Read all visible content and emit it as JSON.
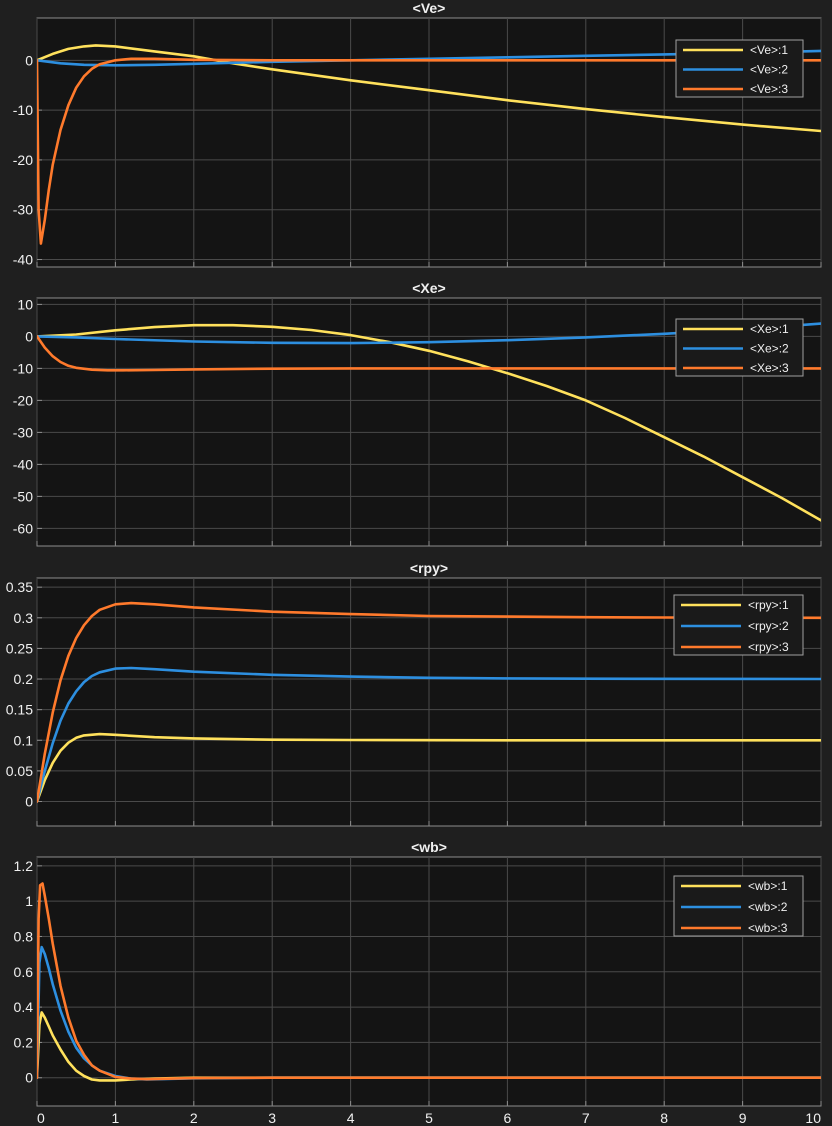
{
  "colors": {
    "background": "#1f1f1f",
    "plot_area": "#141414",
    "grid": "#4a4a4a",
    "axis": "#8c8c8c",
    "text": "#f0f0f0",
    "legend_bg": "#1a1a1a",
    "legend_border": "#a0a0a0",
    "series_1": "#ffe15c",
    "series_2": "#2d8fe0",
    "series_3": "#ff7a2c"
  },
  "chart_data": [
    {
      "type": "line",
      "title": "<Ve>",
      "xlim": [
        0,
        10
      ],
      "ylim": [
        -41.5,
        8.5
      ],
      "yticks": [
        -40,
        -30,
        -20,
        -10,
        0
      ],
      "xticks": [
        0,
        1,
        2,
        3,
        4,
        5,
        6,
        7,
        8,
        9,
        10
      ],
      "show_xticklabels": false,
      "grid": true,
      "legend": "top-right",
      "series": [
        {
          "name": "<Ve>:1",
          "x": [
            0,
            0.2,
            0.4,
            0.6,
            0.75,
            1,
            1.5,
            2,
            2.5,
            3,
            4,
            5,
            6,
            7,
            8,
            9,
            10
          ],
          "y": [
            0,
            1.3,
            2.3,
            2.8,
            3.0,
            2.8,
            1.8,
            0.8,
            -0.6,
            -1.8,
            -4.0,
            -6.0,
            -8.0,
            -9.8,
            -11.4,
            -12.9,
            -14.2
          ]
        },
        {
          "name": "<Ve>:2",
          "x": [
            0,
            0.3,
            0.6,
            1,
            1.5,
            2,
            3,
            4,
            5,
            6,
            7,
            8,
            9,
            10
          ],
          "y": [
            0,
            -0.6,
            -0.9,
            -1.0,
            -0.9,
            -0.7,
            -0.3,
            0,
            0.3,
            0.6,
            0.9,
            1.2,
            1.5,
            1.9
          ]
        },
        {
          "name": "<Ve>:3",
          "x": [
            0,
            0.02,
            0.05,
            0.1,
            0.15,
            0.2,
            0.3,
            0.4,
            0.5,
            0.6,
            0.7,
            0.8,
            1,
            1.2,
            1.5,
            2,
            3,
            10
          ],
          "y": [
            0,
            -30,
            -36.8,
            -32,
            -26,
            -21,
            -14,
            -9,
            -5.5,
            -3.2,
            -1.7,
            -0.8,
            0.0,
            0.3,
            0.3,
            0.1,
            0,
            0
          ]
        }
      ]
    },
    {
      "type": "line",
      "title": "<Xe>",
      "xlim": [
        0,
        10
      ],
      "ylim": [
        -65.5,
        12
      ],
      "yticks": [
        -60,
        -50,
        -40,
        -30,
        -20,
        -10,
        0,
        10
      ],
      "xticks": [
        0,
        1,
        2,
        3,
        4,
        5,
        6,
        7,
        8,
        9,
        10
      ],
      "show_xticklabels": false,
      "grid": true,
      "legend": "top-right",
      "series": [
        {
          "name": "<Xe>:1",
          "x": [
            0,
            0.5,
            1,
            1.5,
            2,
            2.5,
            3,
            3.5,
            4,
            4.5,
            5,
            5.5,
            6,
            6.5,
            7,
            7.5,
            8,
            8.5,
            9,
            9.5,
            10
          ],
          "y": [
            0,
            0.6,
            1.9,
            2.9,
            3.5,
            3.5,
            3.0,
            2.0,
            0.4,
            -1.8,
            -4.5,
            -7.8,
            -11.5,
            -15.5,
            -20.0,
            -25.5,
            -31.5,
            -37.5,
            -44.0,
            -50.5,
            -57.5
          ]
        },
        {
          "name": "<Xe>:2",
          "x": [
            0,
            0.5,
            1,
            2,
            3,
            4,
            5,
            6,
            7,
            8,
            9,
            10
          ],
          "y": [
            0,
            -0.3,
            -0.8,
            -1.6,
            -2.0,
            -2.1,
            -1.8,
            -1.2,
            -0.3,
            0.8,
            2.2,
            4.0
          ]
        },
        {
          "name": "<Xe>:3",
          "x": [
            0,
            0.1,
            0.2,
            0.3,
            0.4,
            0.5,
            0.7,
            0.9,
            1.1,
            1.5,
            2,
            3,
            4,
            10
          ],
          "y": [
            0,
            -3.5,
            -6.2,
            -8.0,
            -9.2,
            -9.8,
            -10.4,
            -10.6,
            -10.6,
            -10.5,
            -10.3,
            -10.1,
            -10.0,
            -10.0
          ]
        }
      ]
    },
    {
      "type": "line",
      "title": "<rpy>",
      "xlim": [
        0,
        10
      ],
      "ylim": [
        -0.04,
        0.365
      ],
      "yticks": [
        0,
        0.05,
        0.1,
        0.15,
        0.2,
        0.25,
        0.3,
        0.35
      ],
      "xticks": [
        0,
        1,
        2,
        3,
        4,
        5,
        6,
        7,
        8,
        9,
        10
      ],
      "show_xticklabels": false,
      "grid": true,
      "legend": "top-right",
      "series": [
        {
          "name": "<rpy>:1",
          "x": [
            0,
            0.1,
            0.2,
            0.3,
            0.4,
            0.5,
            0.6,
            0.8,
            1,
            1.5,
            2,
            3,
            4,
            6,
            10
          ],
          "y": [
            0,
            0.035,
            0.063,
            0.083,
            0.096,
            0.104,
            0.108,
            0.11,
            0.109,
            0.105,
            0.103,
            0.101,
            0.1005,
            0.1,
            0.1
          ]
        },
        {
          "name": "<rpy>:2",
          "x": [
            0,
            0.1,
            0.2,
            0.3,
            0.4,
            0.5,
            0.6,
            0.7,
            0.8,
            1,
            1.2,
            1.5,
            2,
            3,
            4,
            5,
            6,
            7,
            10
          ],
          "y": [
            0,
            0.05,
            0.095,
            0.132,
            0.16,
            0.18,
            0.195,
            0.205,
            0.211,
            0.217,
            0.218,
            0.216,
            0.212,
            0.207,
            0.204,
            0.202,
            0.201,
            0.2005,
            0.2
          ]
        },
        {
          "name": "<rpy>:3",
          "x": [
            0,
            0.1,
            0.2,
            0.3,
            0.4,
            0.5,
            0.6,
            0.7,
            0.8,
            1,
            1.2,
            1.5,
            2,
            3,
            4,
            5,
            6,
            7,
            8,
            10
          ],
          "y": [
            0,
            0.078,
            0.145,
            0.198,
            0.238,
            0.267,
            0.288,
            0.303,
            0.313,
            0.322,
            0.324,
            0.322,
            0.317,
            0.31,
            0.306,
            0.303,
            0.302,
            0.301,
            0.3005,
            0.3
          ]
        }
      ]
    },
    {
      "type": "line",
      "title": "<wb>",
      "xlim": [
        0,
        10
      ],
      "ylim": [
        -0.16,
        1.25
      ],
      "yticks": [
        0,
        0.2,
        0.4,
        0.6,
        0.8,
        1,
        1.2
      ],
      "xticks": [
        0,
        1,
        2,
        3,
        4,
        5,
        6,
        7,
        8,
        9,
        10
      ],
      "show_xticklabels": true,
      "grid": true,
      "legend": "top-right",
      "series": [
        {
          "name": "<wb>:1",
          "x": [
            0,
            0.03,
            0.06,
            0.1,
            0.15,
            0.2,
            0.3,
            0.4,
            0.5,
            0.6,
            0.7,
            0.8,
            1,
            1.2,
            1.5,
            2,
            3,
            10
          ],
          "y": [
            0,
            0.3,
            0.37,
            0.34,
            0.29,
            0.24,
            0.16,
            0.09,
            0.04,
            0.01,
            -0.01,
            -0.015,
            -0.015,
            -0.01,
            -0.005,
            0,
            0,
            0
          ]
        },
        {
          "name": "<wb>:2",
          "x": [
            0,
            0.03,
            0.06,
            0.1,
            0.15,
            0.2,
            0.3,
            0.4,
            0.5,
            0.6,
            0.7,
            0.8,
            1,
            1.2,
            1.4,
            2,
            3,
            10
          ],
          "y": [
            0,
            0.65,
            0.74,
            0.7,
            0.62,
            0.53,
            0.38,
            0.26,
            0.17,
            0.11,
            0.07,
            0.04,
            0.01,
            -0.005,
            -0.01,
            -0.003,
            0,
            0
          ]
        },
        {
          "name": "<wb>:3",
          "x": [
            0,
            0.02,
            0.04,
            0.07,
            0.1,
            0.15,
            0.2,
            0.3,
            0.4,
            0.5,
            0.6,
            0.7,
            0.8,
            1,
            1.2,
            1.4,
            2,
            3,
            10
          ],
          "y": [
            0,
            0.9,
            1.09,
            1.1,
            1.03,
            0.9,
            0.76,
            0.52,
            0.34,
            0.21,
            0.13,
            0.07,
            0.04,
            0.005,
            -0.005,
            -0.008,
            -0.002,
            0,
            0
          ]
        }
      ]
    }
  ]
}
